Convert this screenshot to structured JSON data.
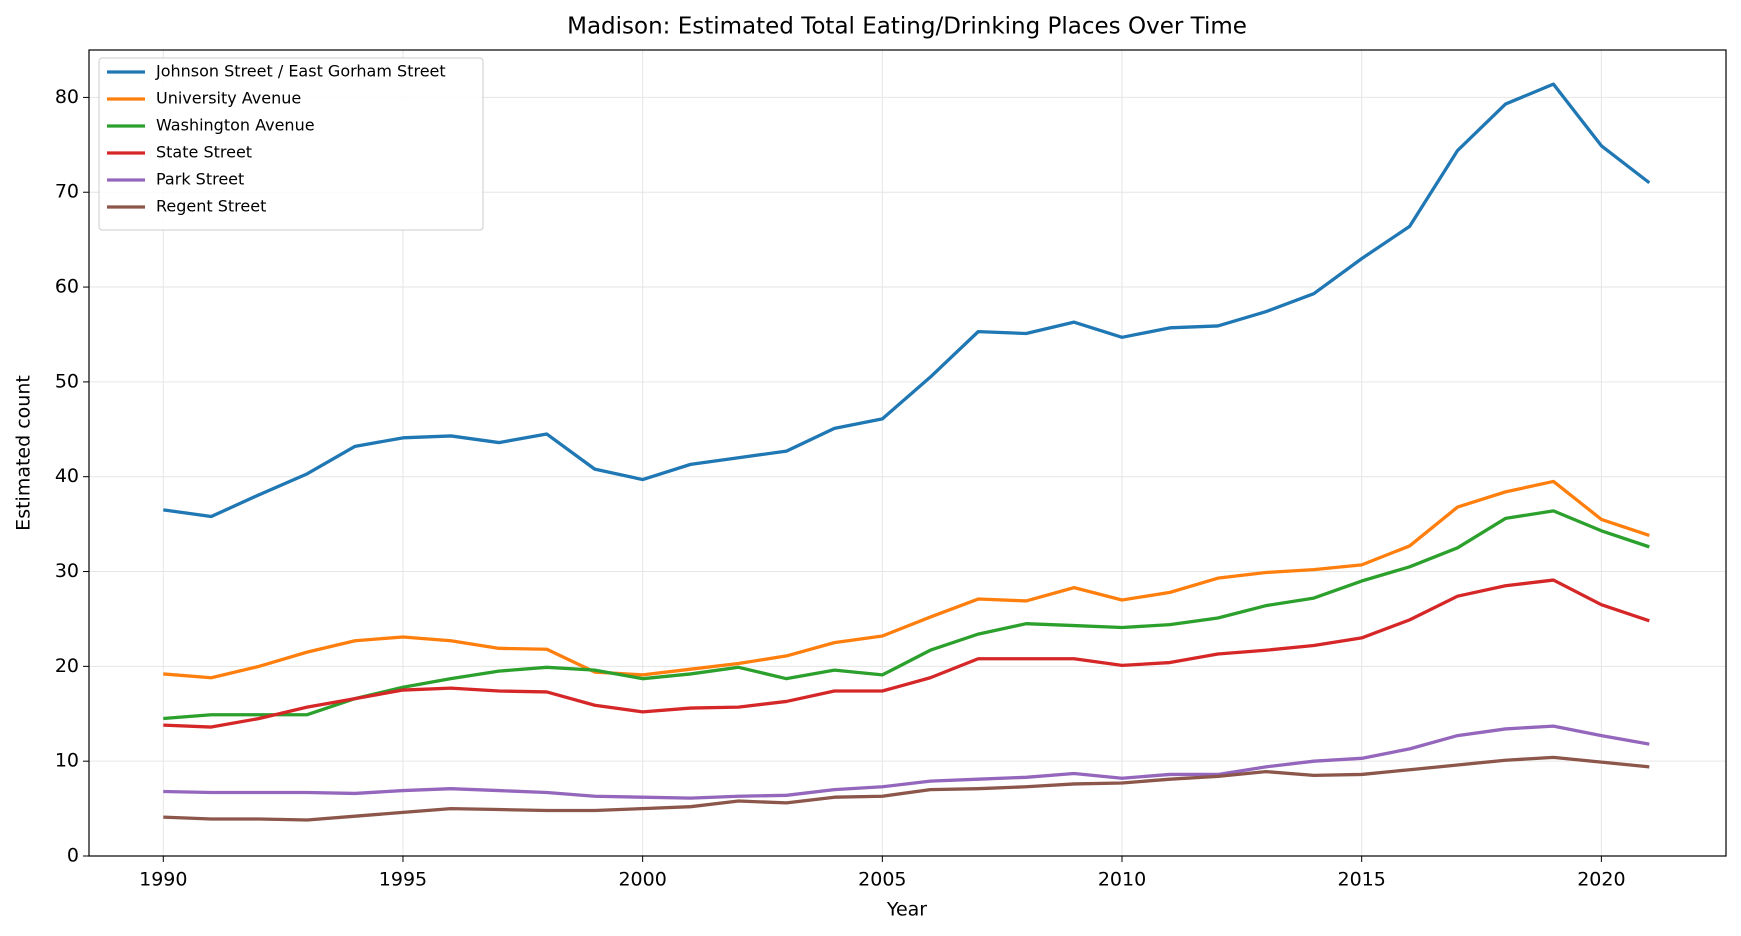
{
  "chart_data": {
    "type": "line",
    "title": "Madison: Estimated Total Eating/Drinking Places Over Time",
    "x_label": "Year",
    "y_label": "Estimated count",
    "x": [
      1990,
      1991,
      1992,
      1993,
      1994,
      1995,
      1996,
      1997,
      1998,
      1999,
      2000,
      2001,
      2002,
      2003,
      2004,
      2005,
      2006,
      2007,
      2008,
      2009,
      2010,
      2011,
      2012,
      2013,
      2014,
      2015,
      2016,
      2017,
      2018,
      2019,
      2020,
      2021
    ],
    "series": [
      {
        "name": "Johnson Street / East Gorham Street",
        "color": "#1f77b4",
        "values": [
          36.5,
          35.8,
          38.1,
          40.3,
          43.2,
          44.1,
          44.3,
          43.6,
          44.5,
          40.8,
          39.7,
          41.3,
          42.0,
          42.7,
          45.1,
          46.1,
          50.5,
          55.3,
          55.1,
          56.3,
          54.7,
          55.7,
          55.9,
          57.4,
          59.3,
          63.0,
          66.4,
          74.4,
          79.3,
          81.4,
          74.9,
          71.0
        ]
      },
      {
        "name": "University Avenue",
        "color": "#ff7f0e",
        "values": [
          19.2,
          18.8,
          20.0,
          21.5,
          22.7,
          23.1,
          22.7,
          21.9,
          21.8,
          19.4,
          19.1,
          19.7,
          20.3,
          21.1,
          22.5,
          23.2,
          25.2,
          27.1,
          26.9,
          28.3,
          27.0,
          27.8,
          29.3,
          29.9,
          30.2,
          30.7,
          32.7,
          36.8,
          38.4,
          39.5,
          35.5,
          33.8
        ]
      },
      {
        "name": "Washington Avenue",
        "color": "#2ca02c",
        "values": [
          14.5,
          14.9,
          14.9,
          14.9,
          16.6,
          17.8,
          18.7,
          19.5,
          19.9,
          19.6,
          18.7,
          19.2,
          19.9,
          18.7,
          19.6,
          19.1,
          21.7,
          23.4,
          24.5,
          24.3,
          24.1,
          24.4,
          25.1,
          26.4,
          27.2,
          29.0,
          30.5,
          32.5,
          35.6,
          36.4,
          34.3,
          32.6
        ]
      },
      {
        "name": "State Street",
        "color": "#d62728",
        "values": [
          13.8,
          13.6,
          14.5,
          15.7,
          16.6,
          17.5,
          17.7,
          17.4,
          17.3,
          15.9,
          15.2,
          15.6,
          15.7,
          16.3,
          17.4,
          17.4,
          18.8,
          20.8,
          20.8,
          20.8,
          20.1,
          20.4,
          21.3,
          21.7,
          22.2,
          23.0,
          24.9,
          27.4,
          28.5,
          29.1,
          26.5,
          24.8
        ]
      },
      {
        "name": "Park Street",
        "color": "#9467bd",
        "values": [
          6.8,
          6.7,
          6.7,
          6.7,
          6.6,
          6.9,
          7.1,
          6.9,
          6.7,
          6.3,
          6.2,
          6.1,
          6.3,
          6.4,
          7.0,
          7.3,
          7.9,
          8.1,
          8.3,
          8.7,
          8.2,
          8.6,
          8.6,
          9.4,
          10.0,
          10.3,
          11.3,
          12.7,
          13.4,
          13.7,
          12.7,
          11.8
        ]
      },
      {
        "name": "Regent Street",
        "color": "#8c564b",
        "values": [
          4.1,
          3.9,
          3.9,
          3.8,
          4.2,
          4.6,
          5.0,
          4.9,
          4.8,
          4.8,
          5.0,
          5.2,
          5.8,
          5.6,
          6.2,
          6.3,
          7.0,
          7.1,
          7.3,
          7.6,
          7.7,
          8.1,
          8.4,
          8.9,
          8.5,
          8.6,
          9.1,
          9.6,
          10.1,
          10.4,
          9.9,
          9.4
        ]
      }
    ],
    "xlim": [
      1988.45,
      2022.6
    ],
    "xticks": [
      1990,
      1995,
      2000,
      2005,
      2010,
      2015,
      2020
    ],
    "ylim": [
      0,
      85
    ],
    "yticks": [
      0,
      10,
      20,
      30,
      40,
      50,
      60,
      70,
      80
    ],
    "grid": true,
    "legend": "upper left"
  }
}
